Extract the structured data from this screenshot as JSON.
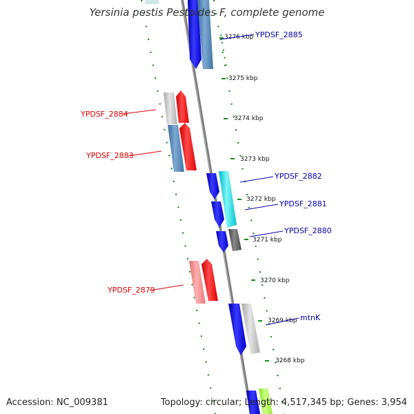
{
  "title": "Yersinia pestis Pestoides F, complete genome",
  "footer": {
    "accession": "Accession: NC_009381",
    "stats": "Topology: circular; Length: 4,517,345 bp; Genes: 3,954"
  },
  "ticks": [
    "3276 kbp",
    "3275 kbp",
    "3274 kbp",
    "3273 kbp",
    "3272 kbp",
    "3271 kbp",
    "3270 kbp",
    "3269 kbp",
    "3268 kbp"
  ],
  "genes": [
    {
      "label": "YPDSF_2885",
      "strand": "forward",
      "color": "#0000cc"
    },
    {
      "label": "YPDSF_2884",
      "strand": "reverse",
      "color": "#e00000"
    },
    {
      "label": "YPDSF_2883",
      "strand": "reverse",
      "color": "#e00000"
    },
    {
      "label": "YPDSF_2882",
      "strand": "forward",
      "color": "#0000cc"
    },
    {
      "label": "YPDSF_2881",
      "strand": "forward",
      "color": "#0000cc"
    },
    {
      "label": "YPDSF_2880",
      "strand": "forward",
      "color": "#0000cc"
    },
    {
      "label": "YPDSF_2879",
      "strand": "reverse",
      "color": "#e00000"
    },
    {
      "label": "mtnK",
      "strand": "forward",
      "color": "#0000cc"
    }
  ]
}
